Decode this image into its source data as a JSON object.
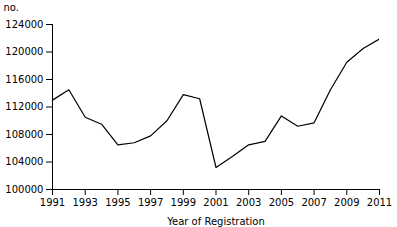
{
  "chart_data": {
    "type": "line",
    "x": [
      1991,
      1992,
      1993,
      1994,
      1995,
      1996,
      1997,
      1998,
      1999,
      2000,
      2001,
      2002,
      2003,
      2004,
      2005,
      2006,
      2007,
      2008,
      2009,
      2010,
      2011
    ],
    "values": [
      113000,
      114500,
      110500,
      109500,
      106500,
      106800,
      107800,
      110000,
      113800,
      113200,
      103200,
      104800,
      106500,
      107000,
      110700,
      109200,
      109700,
      114500,
      118500,
      120500,
      121900
    ],
    "color": "#000000",
    "xlabel": "Year of Registration",
    "ylabel": "no.",
    "xlim": [
      1991,
      2011
    ],
    "ylim": [
      100000,
      124000
    ],
    "xticks": [
      1991,
      1993,
      1995,
      1997,
      1999,
      2001,
      2003,
      2005,
      2007,
      2009,
      2011
    ],
    "yticks": [
      100000,
      104000,
      108000,
      112000,
      116000,
      120000,
      124000
    ],
    "grid": false
  }
}
